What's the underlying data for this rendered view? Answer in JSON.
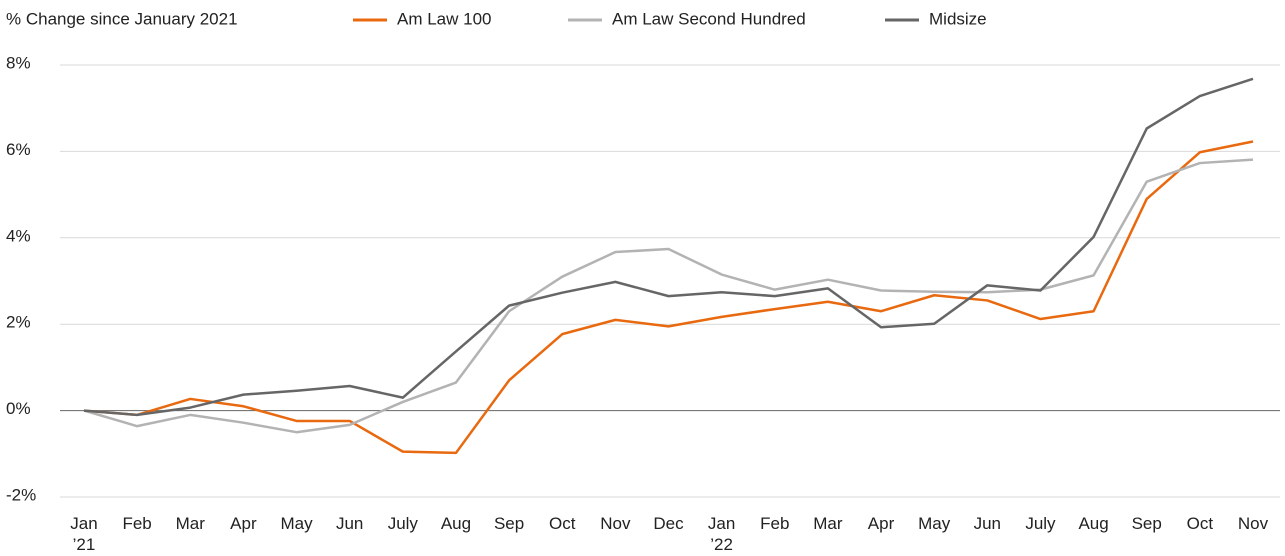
{
  "chart_data": {
    "type": "line",
    "title": "% Change since January 2021",
    "categories": [
      "Jan ’21",
      "Feb",
      "Mar",
      "Apr",
      "May",
      "Jun",
      "July",
      "Aug",
      "Sep",
      "Oct",
      "Nov",
      "Dec",
      "Jan ’22",
      "Feb",
      "Mar",
      "Apr",
      "May",
      "Jun",
      "July",
      "Aug",
      "Sep",
      "Oct",
      "Nov"
    ],
    "series": [
      {
        "name": "Am Law 100",
        "color": "#e8690f",
        "values": [
          0,
          -0.1,
          0.27,
          0.1,
          -0.24,
          -0.24,
          -0.95,
          -0.98,
          0.7,
          1.77,
          2.1,
          1.95,
          2.17,
          2.35,
          2.52,
          2.3,
          2.67,
          2.55,
          2.12,
          2.3,
          4.9,
          5.98,
          6.23
        ]
      },
      {
        "name": "Am Law Second Hundred",
        "color": "#b3b3b3",
        "values": [
          0,
          -0.36,
          -0.1,
          -0.28,
          -0.5,
          -0.33,
          0.2,
          0.65,
          2.3,
          3.1,
          3.67,
          3.74,
          3.15,
          2.8,
          3.03,
          2.78,
          2.75,
          2.74,
          2.8,
          3.13,
          5.3,
          5.73,
          5.81
        ]
      },
      {
        "name": "Midsize",
        "color": "#666666",
        "values": [
          0,
          -0.1,
          0.07,
          0.37,
          0.46,
          0.57,
          0.3,
          1.37,
          2.43,
          2.73,
          2.98,
          2.65,
          2.74,
          2.65,
          2.83,
          1.93,
          2.01,
          2.9,
          2.78,
          4.02,
          6.53,
          7.28,
          7.68
        ]
      }
    ],
    "ylim": [
      -2,
      8
    ],
    "yticks": [
      {
        "value": -2,
        "label": "-2%"
      },
      {
        "value": 0,
        "label": "0%"
      },
      {
        "value": 2,
        "label": "2%"
      },
      {
        "value": 4,
        "label": "4%"
      },
      {
        "value": 6,
        "label": "6%"
      },
      {
        "value": 8,
        "label": "8%"
      }
    ],
    "grid": true
  }
}
